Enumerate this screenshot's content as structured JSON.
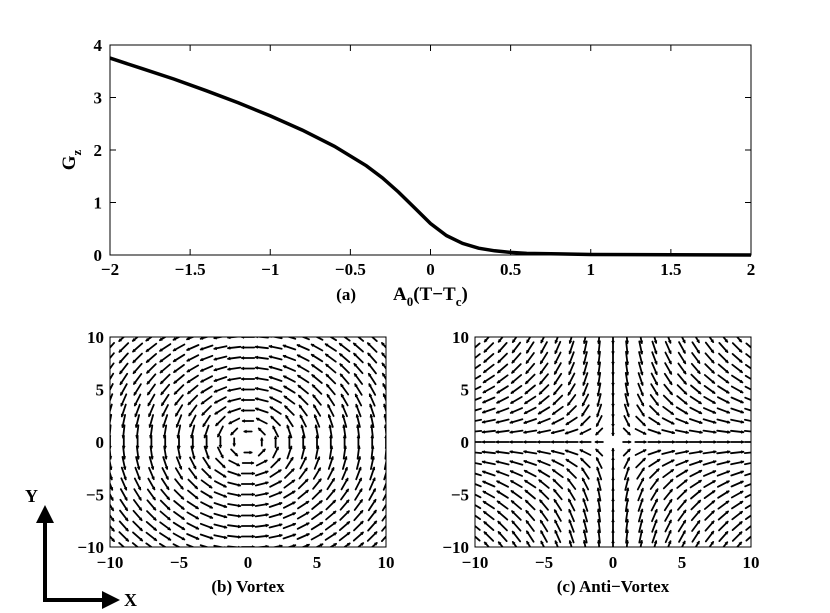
{
  "chart_data": [
    {
      "type": "line",
      "panel_label": "(a)",
      "xlabel": "A",
      "xlabel_sub": "0",
      "xlabel_rest": "(T−T",
      "xlabel_sub2": "c",
      "xlabel_close": ")",
      "ylabel": "G",
      "ylabel_sub": "z",
      "xlim": [
        -2,
        2
      ],
      "ylim": [
        0,
        4
      ],
      "xticks": [
        "−2",
        "−1.5",
        "−1",
        "−0.5",
        "0",
        "0.5",
        "1",
        "1.5",
        "2"
      ],
      "yticks": [
        "0",
        "1",
        "2",
        "3",
        "4"
      ],
      "series": [
        {
          "x": [
            -2,
            -1.8,
            -1.6,
            -1.4,
            -1.2,
            -1.0,
            -0.8,
            -0.6,
            -0.4,
            -0.3,
            -0.2,
            -0.1,
            0,
            0.1,
            0.2,
            0.3,
            0.4,
            0.5,
            0.6,
            0.8,
            1.0,
            1.5,
            2.0
          ],
          "values": [
            3.75,
            3.55,
            3.35,
            3.13,
            2.9,
            2.65,
            2.38,
            2.07,
            1.7,
            1.47,
            1.2,
            0.9,
            0.6,
            0.37,
            0.22,
            0.13,
            0.08,
            0.05,
            0.03,
            0.02,
            0.01,
            0.005,
            0.0
          ]
        }
      ]
    },
    {
      "type": "quiver",
      "title": "(b) Vortex",
      "xlim": [
        -10,
        10
      ],
      "ylim": [
        -10,
        10
      ],
      "xticks": [
        "−10",
        "−5",
        "0",
        "5",
        "10"
      ],
      "yticks": [
        "10",
        "5",
        "0",
        "−5",
        "−10"
      ],
      "pattern": "vortex",
      "grid_points_per_axis": 21
    },
    {
      "type": "quiver",
      "title": "(c) Anti−Vortex",
      "xlim": [
        -10,
        10
      ],
      "ylim": [
        -10,
        10
      ],
      "xticks": [
        "−10",
        "−5",
        "0",
        "5",
        "10"
      ],
      "yticks": [
        "10",
        "5",
        "0",
        "−5",
        "−10"
      ],
      "pattern": "anti-vortex",
      "grid_points_per_axis": 21
    }
  ],
  "axes_indicator": {
    "x_label": "X",
    "y_label": "Y"
  }
}
